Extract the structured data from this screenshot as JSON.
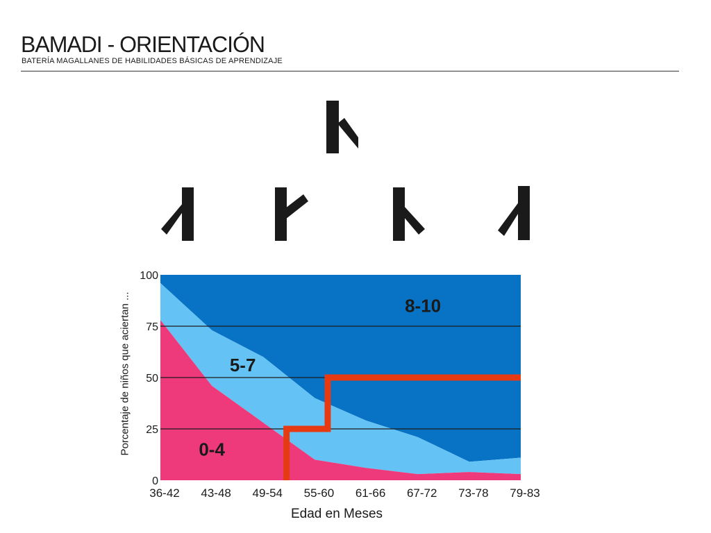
{
  "header": {
    "title": "BAMADI - ORIENTACIÓN",
    "subtitle": "BATERÍA MAGALLANES DE HABILIDADES BÁSICAS DE APRENDIZAJE"
  },
  "stimulus": {
    "model_icon": "rune-glyph-model-icon",
    "option_icons": [
      "rune-glyph-mirrored-down-icon",
      "rune-glyph-up-right-icon",
      "rune-glyph-down-right-icon",
      "rune-glyph-mirrored-down-icon"
    ]
  },
  "chart_data": {
    "type": "area",
    "stacked": true,
    "categories": [
      "36-42",
      "43-48",
      "49-54",
      "55-60",
      "61-66",
      "67-72",
      "73-78",
      "79-83"
    ],
    "xlabel": "Edad en Meses",
    "ylabel": "Porcentaje de niños que aciertan ...",
    "ylim": [
      0,
      100
    ],
    "yticks": [
      0,
      25,
      50,
      75,
      100
    ],
    "grid": true,
    "series": [
      {
        "name": "0-4",
        "color": "#ee3a7a",
        "cumulative": [
          78,
          46,
          28,
          10,
          6,
          3,
          4,
          3
        ]
      },
      {
        "name": "5-7",
        "color": "#64c3f4",
        "cumulative": [
          96,
          73,
          60,
          40,
          29,
          21,
          9,
          11
        ]
      },
      {
        "name": "8-10",
        "color": "#0873c4",
        "cumulative": [
          100,
          100,
          100,
          100,
          100,
          100,
          100,
          100
        ]
      }
    ],
    "threshold_line": {
      "color": "#e63a12",
      "points": [
        [
          2.45,
          0
        ],
        [
          2.45,
          25
        ],
        [
          3.25,
          25
        ],
        [
          3.25,
          50
        ],
        [
          7,
          50
        ]
      ]
    }
  }
}
